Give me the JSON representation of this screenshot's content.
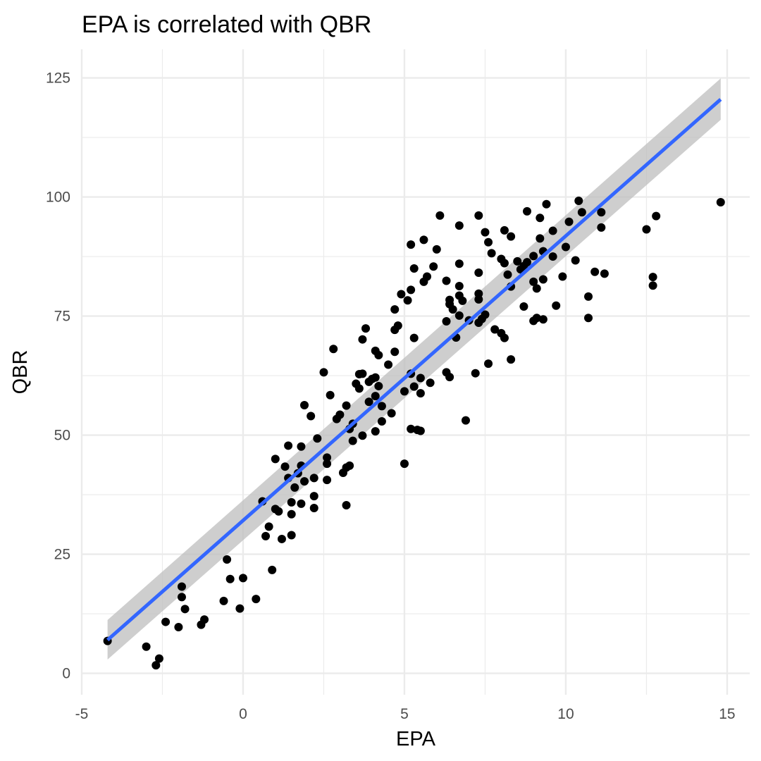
{
  "chart_data": {
    "type": "scatter",
    "title": "EPA is correlated with QBR",
    "xlabel": "EPA",
    "ylabel": "QBR",
    "xlim": [
      -5,
      15.7
    ],
    "ylim": [
      -4.5,
      131
    ],
    "x_ticks": [
      -5,
      0,
      5,
      10,
      15
    ],
    "x_tick_labels": [
      "-5",
      "0",
      "5",
      "10",
      "15"
    ],
    "y_ticks": [
      0,
      25,
      50,
      75,
      100,
      125
    ],
    "y_tick_labels": [
      "0",
      "25",
      "50",
      "75",
      "100",
      "125"
    ],
    "grid": true,
    "legend": "none",
    "colors": {
      "points": "#000000",
      "fit_line": "#3366FF",
      "confidence_band": "#BEBEBE",
      "grid_major": "#EBEBEB",
      "grid_minor": "#F5F5F5"
    },
    "fit": {
      "method": "linear",
      "x_start": -4.2,
      "x_end": 14.8,
      "y_start": 7.0,
      "y_end": 120.5,
      "ci_lower_start": 2.9,
      "ci_upper_start": 11.2,
      "ci_lower_end": 116.2,
      "ci_upper_end": 124.9
    },
    "points": [
      [
        -4.2,
        6.8
      ],
      [
        -3.0,
        5.6
      ],
      [
        -2.7,
        1.7
      ],
      [
        -2.6,
        3.1
      ],
      [
        -2.4,
        10.8
      ],
      [
        -2.0,
        9.7
      ],
      [
        -1.9,
        18.2
      ],
      [
        -1.9,
        16.0
      ],
      [
        -1.8,
        13.5
      ],
      [
        -1.3,
        10.2
      ],
      [
        -1.2,
        11.3
      ],
      [
        -0.6,
        15.2
      ],
      [
        -0.5,
        23.9
      ],
      [
        -0.4,
        19.8
      ],
      [
        -0.1,
        13.6
      ],
      [
        0.0,
        20.0
      ],
      [
        0.4,
        15.6
      ],
      [
        0.6,
        36.1
      ],
      [
        0.7,
        28.8
      ],
      [
        0.8,
        30.8
      ],
      [
        0.9,
        21.7
      ],
      [
        1.0,
        34.5
      ],
      [
        1.0,
        45.0
      ],
      [
        1.1,
        34.0
      ],
      [
        1.2,
        28.2
      ],
      [
        1.3,
        43.4
      ],
      [
        1.4,
        47.8
      ],
      [
        1.4,
        41.0
      ],
      [
        1.5,
        33.4
      ],
      [
        1.5,
        35.9
      ],
      [
        1.5,
        29.0
      ],
      [
        1.6,
        39.0
      ],
      [
        1.7,
        42.0
      ],
      [
        1.8,
        47.6
      ],
      [
        1.8,
        43.6
      ],
      [
        1.8,
        35.6
      ],
      [
        1.9,
        40.3
      ],
      [
        1.9,
        56.3
      ],
      [
        2.1,
        54.0
      ],
      [
        2.2,
        41.0
      ],
      [
        2.2,
        37.2
      ],
      [
        2.2,
        34.7
      ],
      [
        2.3,
        49.3
      ],
      [
        2.5,
        63.2
      ],
      [
        2.6,
        45.3
      ],
      [
        2.6,
        44.0
      ],
      [
        2.6,
        40.6
      ],
      [
        2.7,
        58.4
      ],
      [
        2.8,
        68.1
      ],
      [
        2.9,
        53.4
      ],
      [
        3.0,
        54.3
      ],
      [
        3.1,
        42.1
      ],
      [
        3.2,
        43.2
      ],
      [
        3.2,
        56.2
      ],
      [
        3.2,
        35.3
      ],
      [
        3.3,
        43.6
      ],
      [
        3.3,
        51.3
      ],
      [
        3.4,
        48.8
      ],
      [
        3.4,
        52.4
      ],
      [
        3.5,
        60.8
      ],
      [
        3.6,
        62.8
      ],
      [
        3.6,
        59.8
      ],
      [
        3.7,
        70.1
      ],
      [
        3.7,
        62.9
      ],
      [
        3.7,
        49.9
      ],
      [
        3.8,
        72.4
      ],
      [
        3.9,
        57.0
      ],
      [
        3.9,
        61.2
      ],
      [
        4.0,
        61.8
      ],
      [
        4.1,
        67.7
      ],
      [
        4.1,
        58.2
      ],
      [
        4.1,
        50.8
      ],
      [
        4.1,
        62.1
      ],
      [
        4.2,
        66.8
      ],
      [
        4.2,
        60.3
      ],
      [
        4.3,
        56.1
      ],
      [
        4.3,
        52.9
      ],
      [
        4.5,
        64.8
      ],
      [
        4.6,
        54.6
      ],
      [
        4.7,
        76.4
      ],
      [
        4.7,
        72.1
      ],
      [
        4.7,
        67.5
      ],
      [
        4.8,
        73.0
      ],
      [
        4.9,
        79.6
      ],
      [
        5.0,
        59.2
      ],
      [
        5.0,
        44.0
      ],
      [
        5.1,
        78.3
      ],
      [
        5.2,
        90.0
      ],
      [
        5.2,
        80.5
      ],
      [
        5.2,
        62.9
      ],
      [
        5.2,
        51.3
      ],
      [
        5.3,
        85.0
      ],
      [
        5.3,
        70.4
      ],
      [
        5.3,
        60.2
      ],
      [
        5.4,
        51.1
      ],
      [
        5.5,
        62.0
      ],
      [
        5.5,
        58.8
      ],
      [
        5.5,
        50.9
      ],
      [
        5.6,
        91.0
      ],
      [
        5.6,
        82.2
      ],
      [
        5.7,
        83.3
      ],
      [
        5.8,
        61.0
      ],
      [
        5.9,
        85.4
      ],
      [
        6.0,
        89.0
      ],
      [
        6.1,
        96.1
      ],
      [
        6.3,
        82.4
      ],
      [
        6.3,
        73.9
      ],
      [
        6.3,
        63.2
      ],
      [
        6.4,
        78.4
      ],
      [
        6.4,
        77.5
      ],
      [
        6.4,
        62.2
      ],
      [
        6.5,
        76.4
      ],
      [
        6.6,
        70.5
      ],
      [
        6.7,
        94.0
      ],
      [
        6.7,
        86.0
      ],
      [
        6.7,
        81.3
      ],
      [
        6.7,
        79.3
      ],
      [
        6.7,
        75.1
      ],
      [
        6.8,
        78.2
      ],
      [
        6.9,
        53.1
      ],
      [
        7.0,
        74.1
      ],
      [
        7.2,
        63.0
      ],
      [
        7.3,
        96.1
      ],
      [
        7.3,
        84.1
      ],
      [
        7.3,
        79.7
      ],
      [
        7.3,
        78.5
      ],
      [
        7.3,
        73.6
      ],
      [
        7.4,
        74.4
      ],
      [
        7.5,
        92.6
      ],
      [
        7.5,
        75.3
      ],
      [
        7.6,
        65.0
      ],
      [
        7.6,
        90.5
      ],
      [
        7.7,
        88.2
      ],
      [
        7.8,
        72.2
      ],
      [
        8.0,
        87.0
      ],
      [
        8.0,
        71.4
      ],
      [
        8.1,
        93.0
      ],
      [
        8.1,
        86.1
      ],
      [
        8.1,
        70.4
      ],
      [
        8.2,
        83.7
      ],
      [
        8.3,
        81.2
      ],
      [
        8.3,
        91.7
      ],
      [
        8.3,
        65.9
      ],
      [
        8.5,
        86.5
      ],
      [
        8.6,
        84.8
      ],
      [
        8.7,
        77.0
      ],
      [
        8.7,
        85.5
      ],
      [
        8.8,
        97.0
      ],
      [
        8.8,
        86.3
      ],
      [
        9.0,
        87.6
      ],
      [
        9.0,
        82.2
      ],
      [
        9.0,
        74.0
      ],
      [
        9.1,
        80.8
      ],
      [
        9.1,
        74.6
      ],
      [
        9.2,
        95.6
      ],
      [
        9.2,
        91.3
      ],
      [
        9.3,
        88.6
      ],
      [
        9.3,
        82.7
      ],
      [
        9.3,
        74.3
      ],
      [
        9.4,
        98.5
      ],
      [
        9.6,
        92.9
      ],
      [
        9.6,
        87.5
      ],
      [
        9.7,
        77.2
      ],
      [
        9.9,
        83.3
      ],
      [
        10.0,
        89.5
      ],
      [
        10.1,
        94.8
      ],
      [
        10.3,
        86.7
      ],
      [
        10.4,
        99.2
      ],
      [
        10.5,
        96.8
      ],
      [
        10.7,
        79.1
      ],
      [
        10.7,
        74.6
      ],
      [
        10.9,
        84.3
      ],
      [
        11.1,
        96.8
      ],
      [
        11.1,
        93.6
      ],
      [
        11.2,
        83.9
      ],
      [
        12.5,
        93.2
      ],
      [
        12.7,
        83.2
      ],
      [
        12.7,
        81.4
      ],
      [
        12.8,
        96.0
      ],
      [
        14.8,
        98.9
      ]
    ]
  }
}
